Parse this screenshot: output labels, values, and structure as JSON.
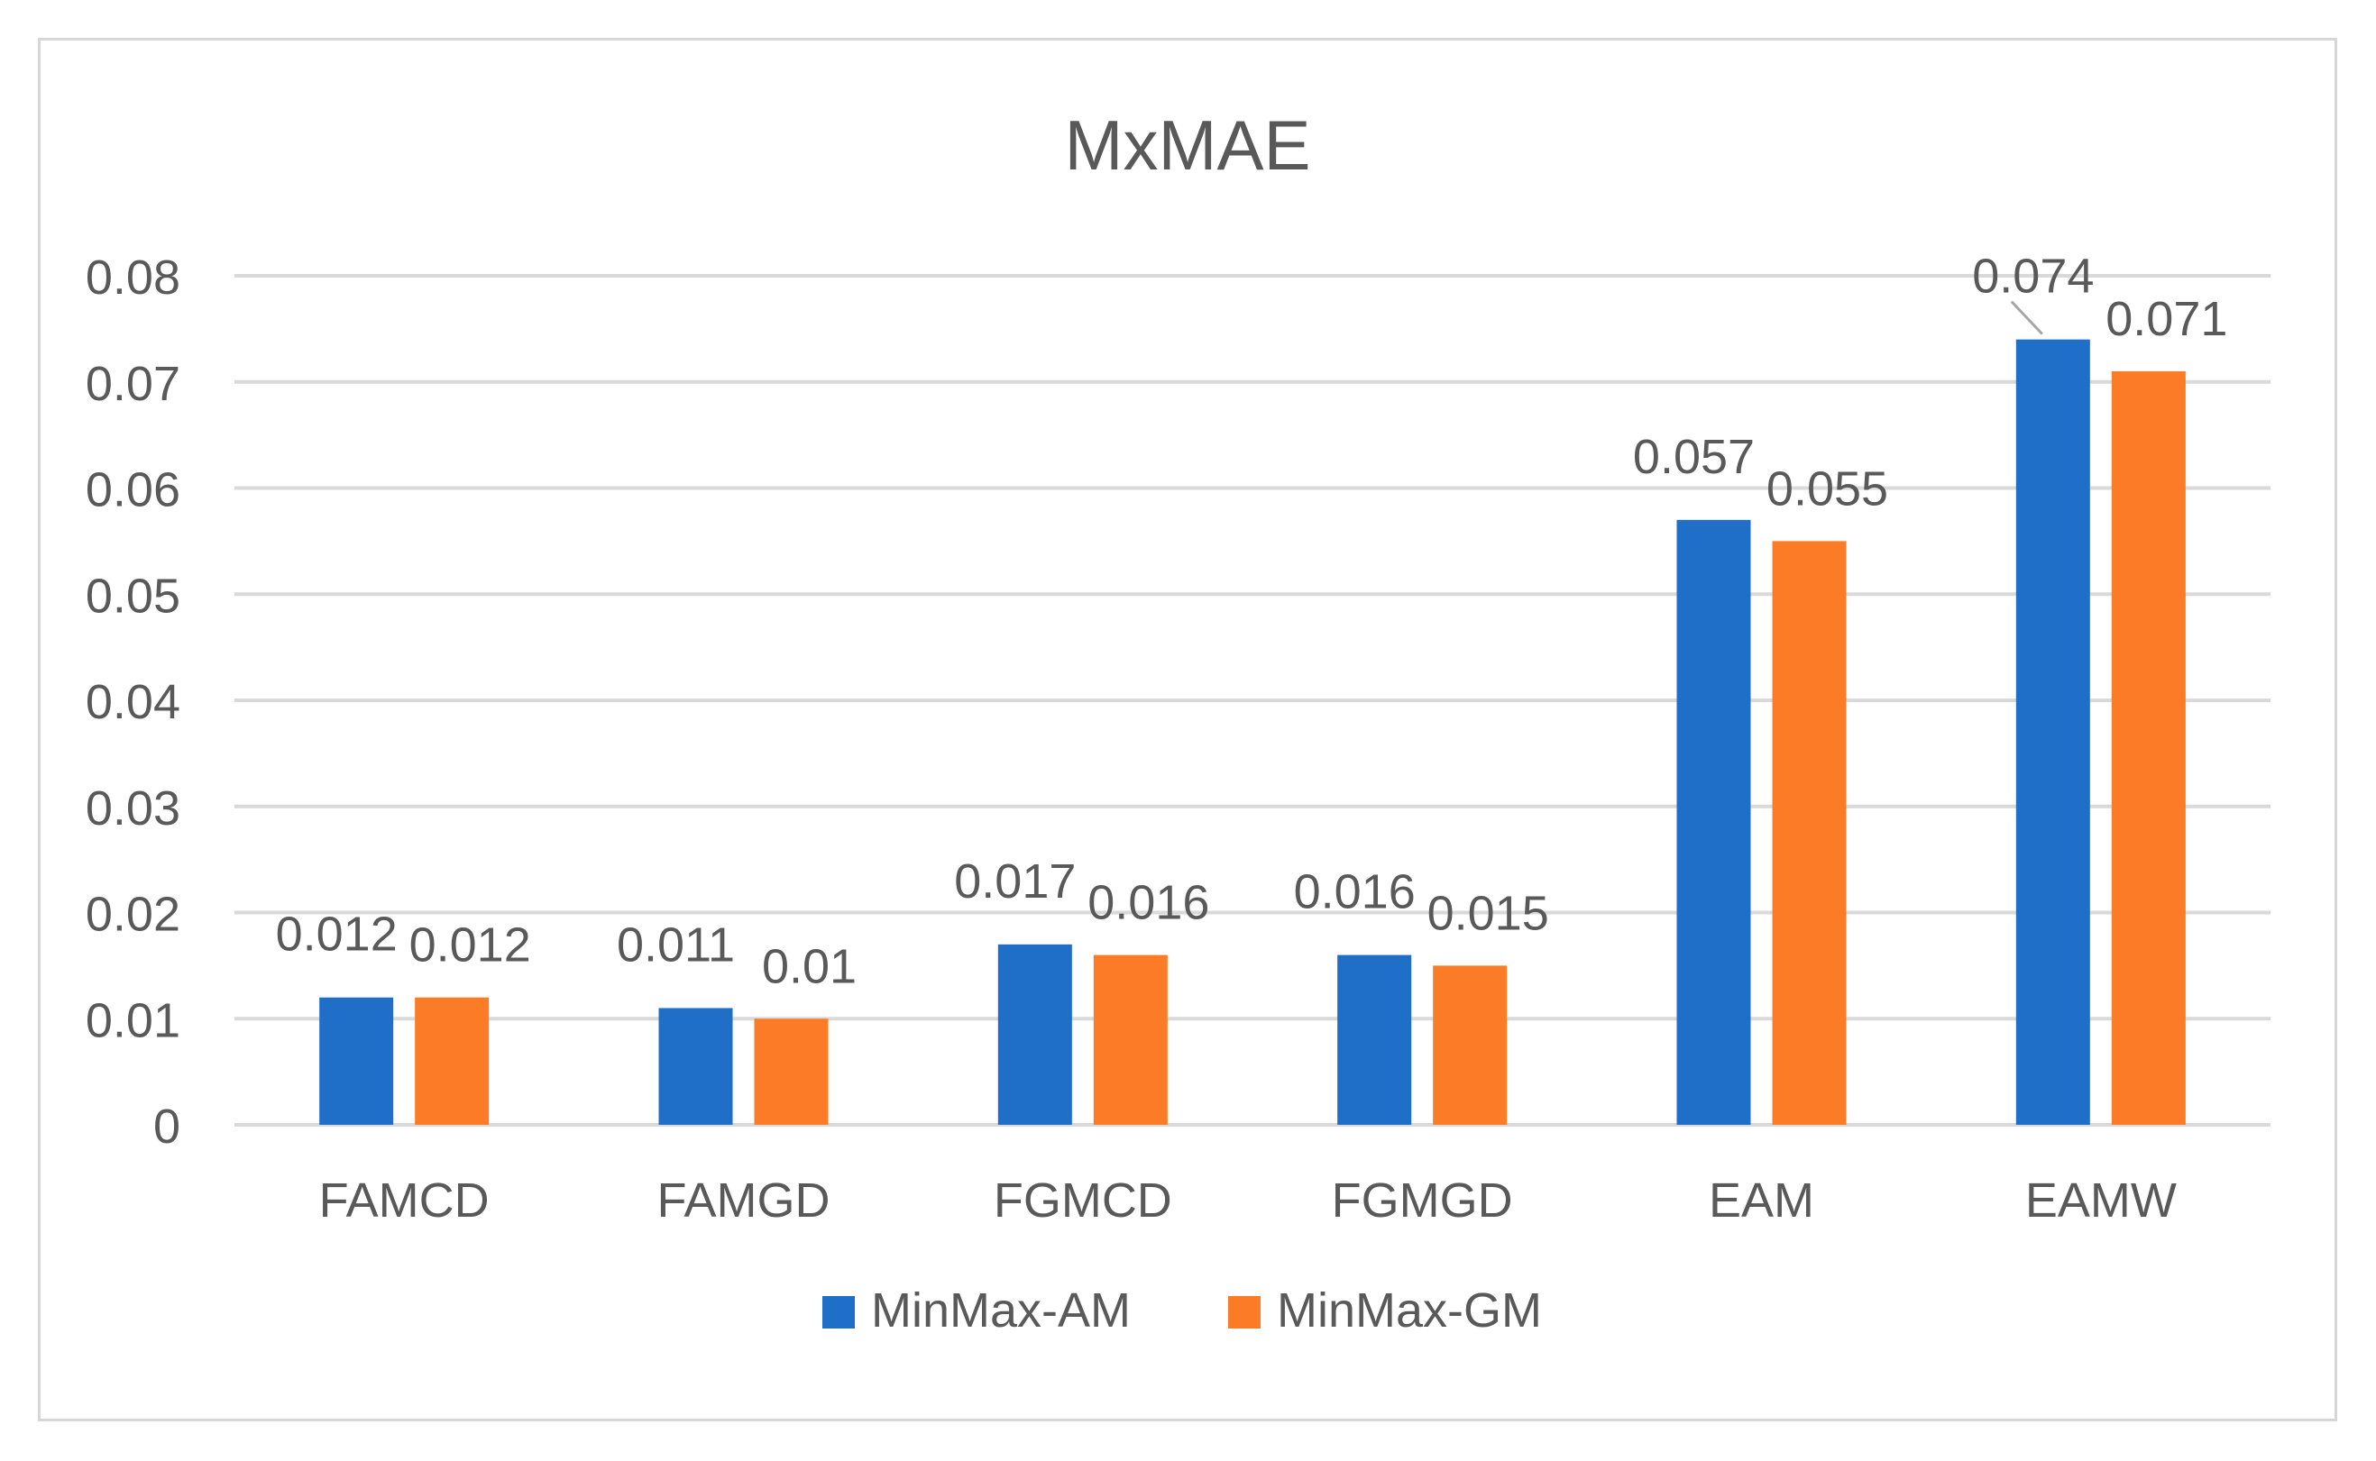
{
  "chart_data": {
    "type": "bar",
    "title": "MxMAE",
    "categories": [
      "FAMCD",
      "FAMGD",
      "FGMCD",
      "FGMGD",
      "EAM",
      "EAMW"
    ],
    "series": [
      {
        "name": "MinMax-AM",
        "values": [
          0.012,
          0.011,
          0.017,
          0.016,
          0.057,
          0.074
        ],
        "labels": [
          "0.012",
          "0.011",
          "0.017",
          "0.016",
          "0.057",
          "0.074"
        ],
        "color": "#1f6fc9"
      },
      {
        "name": "MinMax-GM",
        "values": [
          0.012,
          0.01,
          0.016,
          0.015,
          0.055,
          0.071
        ],
        "labels": [
          "0.012",
          "0.01",
          "0.016",
          "0.015",
          "0.055",
          "0.071"
        ],
        "color": "#fb7b26"
      }
    ],
    "yticks": [
      "0",
      "0.01",
      "0.02",
      "0.03",
      "0.04",
      "0.05",
      "0.06",
      "0.07",
      "0.08"
    ],
    "ylim": [
      0,
      0.08
    ],
    "grid": true,
    "legend_position": "bottom",
    "colors": {
      "gridline": "#d9d9d9",
      "text": "#595959",
      "border": "#d6d6d6"
    }
  }
}
